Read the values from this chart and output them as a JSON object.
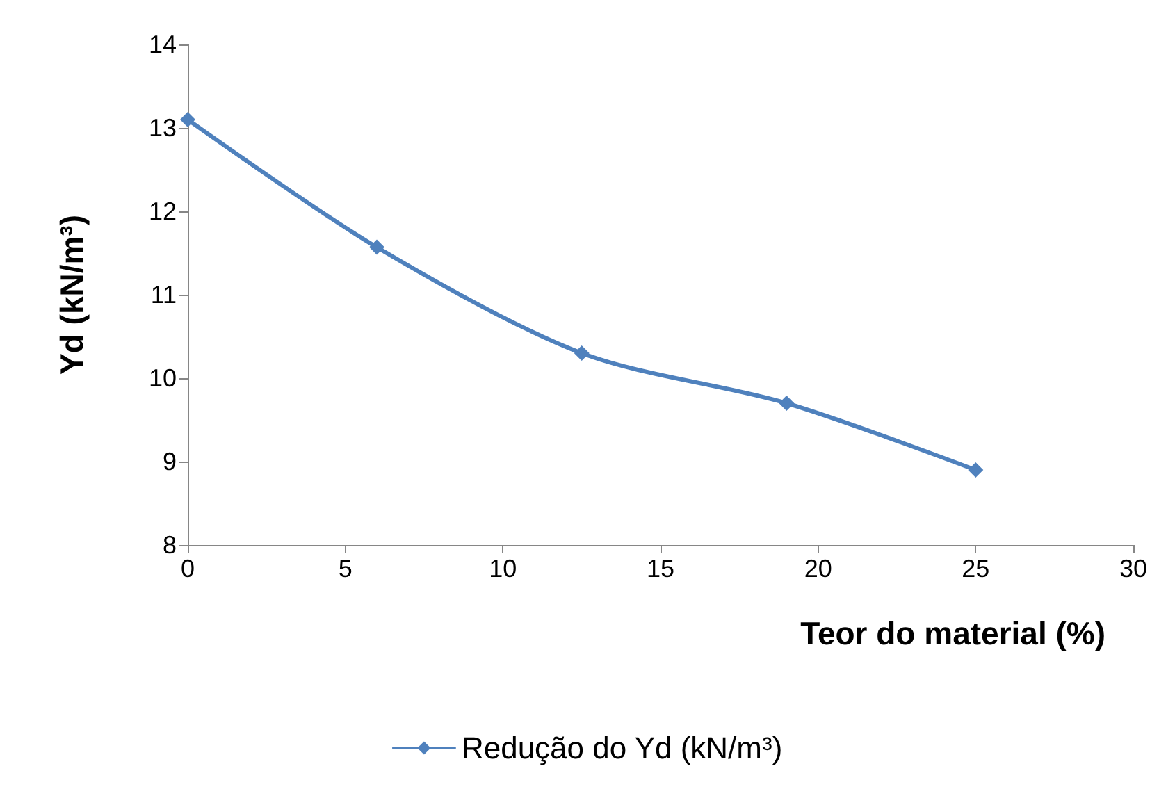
{
  "chart_data": {
    "type": "line",
    "xlabel": "Teor do material (%)",
    "ylabel": "Yd (kN/m³)",
    "x": [
      0,
      6,
      12.5,
      19,
      25
    ],
    "series": [
      {
        "name": "Redução do Yd (kN/m³)",
        "color": "#4f81bd",
        "values": [
          13.1,
          11.57,
          10.3,
          9.7,
          8.9
        ]
      }
    ],
    "xlim": [
      0,
      30
    ],
    "xticks": [
      0,
      5,
      10,
      15,
      20,
      25,
      30
    ],
    "ylim": [
      8,
      14
    ],
    "yticks": [
      8,
      9,
      10,
      11,
      12,
      13,
      14
    ],
    "grid": false,
    "legend": "bottom",
    "marker": "diamond",
    "line_style": "solid"
  }
}
